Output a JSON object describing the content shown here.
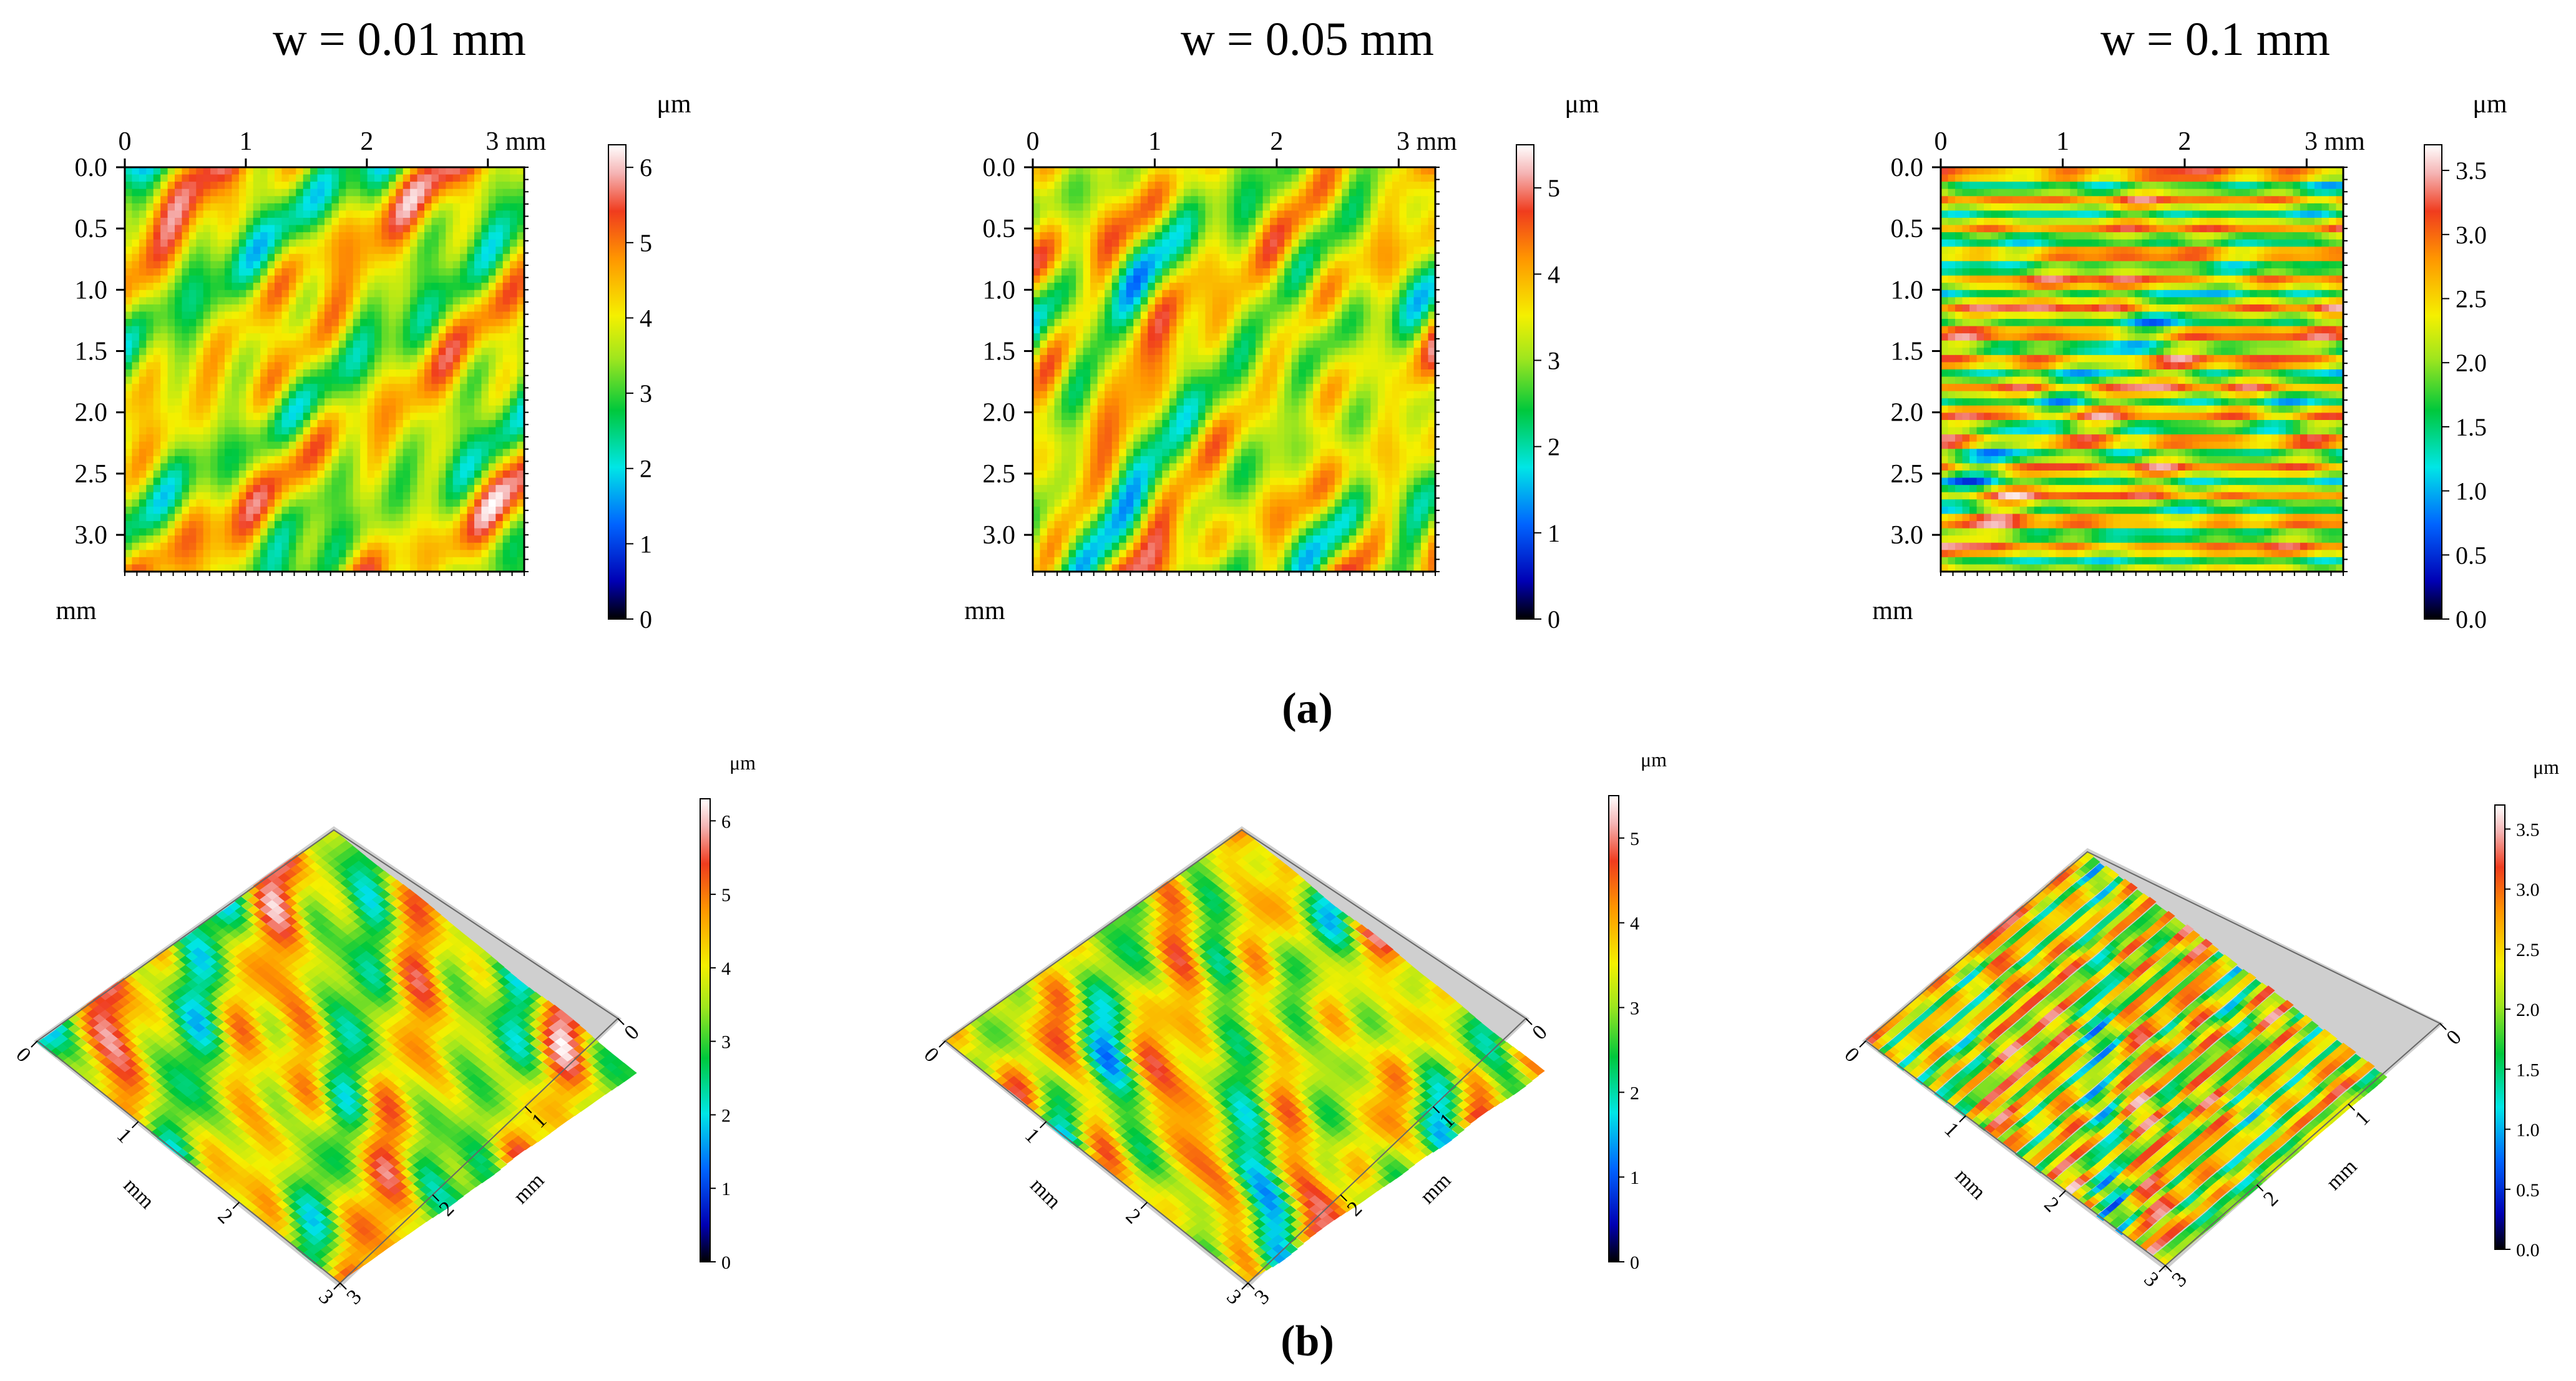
{
  "figure": {
    "type": "surface-topography-maps",
    "height_unit": "μm",
    "panel_a_label": "(a)",
    "panel_b_label": "(b)"
  },
  "chart_data": [
    {
      "type": "heatmap",
      "id": "a1",
      "row": "a",
      "title": "w = 0.01 mm",
      "x_ticks": [
        "0",
        "1",
        "2",
        "3 mm"
      ],
      "y_ticks": [
        "0.0",
        "0.5",
        "1.0",
        "1.5",
        "2.0",
        "2.5",
        "3.0"
      ],
      "y_unit_label": "mm",
      "x_range": [
        0,
        3.3
      ],
      "y_range": [
        0,
        3.3
      ],
      "colorbar": {
        "unit": "μm",
        "ticks": [
          "0",
          "1",
          "2",
          "3",
          "4",
          "5",
          "6"
        ],
        "range": [
          0,
          6.3
        ]
      },
      "texture": "diagonal",
      "seed": 11
    },
    {
      "type": "heatmap",
      "id": "a2",
      "row": "a",
      "title": "w = 0.05 mm",
      "x_ticks": [
        "0",
        "1",
        "2",
        "3 mm"
      ],
      "y_ticks": [
        "0.0",
        "0.5",
        "1.0",
        "1.5",
        "2.0",
        "2.5",
        "3.0"
      ],
      "y_unit_label": "mm",
      "x_range": [
        0,
        3.3
      ],
      "y_range": [
        0,
        3.3
      ],
      "colorbar": {
        "unit": "μm",
        "ticks": [
          "0",
          "1",
          "2",
          "3",
          "4",
          "5"
        ],
        "range": [
          0,
          5.5
        ]
      },
      "texture": "patchy",
      "seed": 23
    },
    {
      "type": "heatmap",
      "id": "a3",
      "row": "a",
      "title": "w = 0.1 mm",
      "x_ticks": [
        "0",
        "1",
        "2",
        "3 mm"
      ],
      "y_ticks": [
        "0.0",
        "0.5",
        "1.0",
        "1.5",
        "2.0",
        "2.5",
        "3.0"
      ],
      "y_unit_label": "mm",
      "x_range": [
        0,
        3.3
      ],
      "y_range": [
        0,
        3.3
      ],
      "colorbar": {
        "unit": "μm",
        "ticks": [
          "0.0",
          "0.5",
          "1.0",
          "1.5",
          "2.0",
          "2.5",
          "3.0",
          "3.5"
        ],
        "range": [
          0,
          3.7
        ]
      },
      "texture": "striped",
      "seed": 37
    },
    {
      "type": "surface3d",
      "id": "b1",
      "row": "b",
      "axis_ticks_left": [
        "0",
        "1",
        "2",
        "3"
      ],
      "axis_ticks_right": [
        "0",
        "1",
        "2",
        "3"
      ],
      "axis_unit": "mm",
      "colorbar": {
        "unit": "μm",
        "ticks": [
          "0",
          "1",
          "2",
          "3",
          "4",
          "5",
          "6"
        ],
        "range": [
          0,
          6.3
        ]
      },
      "texture": "diagonal",
      "seed": 11
    },
    {
      "type": "surface3d",
      "id": "b2",
      "row": "b",
      "axis_ticks_left": [
        "0",
        "1",
        "2",
        "3"
      ],
      "axis_ticks_right": [
        "0",
        "1",
        "2",
        "3"
      ],
      "axis_unit": "mm",
      "colorbar": {
        "unit": "μm",
        "ticks": [
          "0",
          "1",
          "2",
          "3",
          "4",
          "5"
        ],
        "range": [
          0,
          5.5
        ]
      },
      "texture": "patchy",
      "seed": 23
    },
    {
      "type": "surface3d",
      "id": "b3",
      "row": "b",
      "axis_ticks_left": [
        "0",
        "1",
        "2",
        "3"
      ],
      "axis_ticks_right": [
        "0",
        "1",
        "2",
        "3"
      ],
      "axis_unit": "mm",
      "colorbar": {
        "unit": "μm",
        "ticks": [
          "0.0",
          "0.5",
          "1.0",
          "1.5",
          "2.0",
          "2.5",
          "3.0",
          "3.5"
        ],
        "range": [
          0,
          3.7
        ]
      },
      "texture": "striped",
      "seed": 37
    }
  ]
}
